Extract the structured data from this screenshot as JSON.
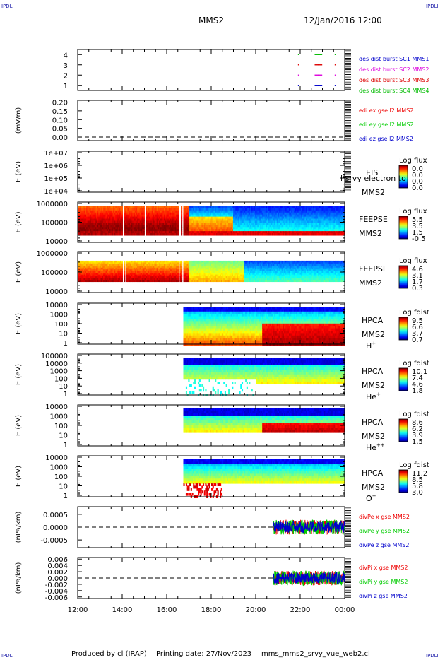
{
  "header": {
    "corner_tl": "IPDLI",
    "corner_tr": "IPDLI",
    "corner_bl": "IPDLI",
    "corner_br": "IPDLI",
    "title": "MMS2",
    "datetime": "12/Jan/2016 12:00"
  },
  "footer": {
    "produced": "Produced by cl (IRAP)",
    "printing": "Printing date: 27/Nov/2023",
    "file": "mms_mms2_srvy_vue_web2.cl"
  },
  "colors": {
    "mms1": "#0000cc",
    "mms2": "#dd00dd",
    "mms3": "#dd0000",
    "mms4": "#00bb00",
    "x_component": "#ee0000",
    "y_component": "#00cc00",
    "z_component": "#0000cc"
  },
  "chart_data": [
    {
      "id": "des-dist-burst",
      "type": "scatter",
      "yticks": [
        "1",
        "2",
        "3",
        "4"
      ],
      "xticks": [
        "12:00",
        "14:00",
        "16:00",
        "18:00",
        "20:00",
        "22:00",
        "00:00"
      ],
      "legend": [
        "des dist burst SC1 MMS1",
        "des dist burst SC2 MMS2",
        "des dist burst SC3 MMS3",
        "des dist burst SC4 MMS4"
      ],
      "series": [
        {
          "name": "des dist burst SC1 MMS1",
          "level": 1,
          "x": [
            21.9,
            22.65,
            22.8,
            23.55
          ]
        },
        {
          "name": "des dist burst SC2 MMS2",
          "level": 2,
          "x": [
            21.9,
            22.65,
            22.8,
            23.55
          ]
        },
        {
          "name": "des dist burst SC3 MMS3",
          "level": 3,
          "x": [
            21.9,
            22.65,
            22.8,
            23.55
          ]
        },
        {
          "name": "des dist burst SC4 MMS4",
          "level": 4,
          "x": [
            21.9,
            22.65,
            22.8,
            23.55
          ]
        }
      ],
      "ylim": [
        0.5,
        4.5
      ]
    },
    {
      "id": "edi-e",
      "type": "line",
      "ylabel": "(mV/m)",
      "yticks": [
        "0.20",
        "0.15",
        "0.10",
        "0.05",
        "0.00"
      ],
      "legend": [
        "edi ex gse l2 MMS2",
        "edi ey gse l2 MMS2",
        "edi ez gse l2 MMS2"
      ],
      "ylim": [
        -0.02,
        0.21
      ],
      "zero_line": true
    },
    {
      "id": "eis",
      "type": "heatmap",
      "ylabel": "E (eV)",
      "yticks": [
        "1e+07",
        "1e+06",
        "1e+05",
        "1e+04"
      ],
      "side_labels": [
        "EIS",
        "MMS2"
      ],
      "overlay_text": "l srvy electron to",
      "colorbar_title": "Log flux",
      "colorbar_ticks": [
        "0.0",
        "0.0",
        "0.0",
        "0.0"
      ]
    },
    {
      "id": "feeps-electron",
      "type": "heatmap",
      "ylabel": "E (eV)",
      "yticks": [
        "1000000",
        "100000",
        "10000"
      ],
      "side_labels": [
        "FEEPSE",
        "MMS2"
      ],
      "colorbar_title": "Log flux",
      "colorbar_ticks": [
        "5.5",
        "3.5",
        "1.5",
        "-0.5"
      ],
      "zrange": [
        -0.5,
        5.5
      ]
    },
    {
      "id": "feeps-ion",
      "type": "heatmap",
      "ylabel": "E (eV)",
      "yticks": [
        "1000000",
        "100000",
        "10000"
      ],
      "side_labels": [
        "FEEPSI",
        "MMS2"
      ],
      "colorbar_title": "Log flux",
      "colorbar_ticks": [
        "4.6",
        "3.1",
        "1.7",
        "0.3"
      ],
      "zrange": [
        0.3,
        4.6
      ]
    },
    {
      "id": "hpca-h",
      "type": "heatmap",
      "ylabel": "E (eV)",
      "yticks": [
        "10000",
        "1000",
        "100",
        "10",
        "1"
      ],
      "side_labels": [
        "HPCA",
        "MMS2"
      ],
      "species": "H",
      "species_charge": "+",
      "colorbar_title": "Log fdist",
      "colorbar_ticks": [
        "9.5",
        "6.6",
        "3.7",
        "0.7"
      ],
      "zrange": [
        0.7,
        9.5
      ]
    },
    {
      "id": "hpca-he",
      "type": "heatmap",
      "ylabel": "E (eV)",
      "yticks": [
        "100000",
        "10000",
        "1000",
        "100",
        "10",
        "1"
      ],
      "side_labels": [
        "HPCA",
        "MMS2"
      ],
      "species": "He",
      "species_charge": "+",
      "colorbar_title": "Log fdist",
      "colorbar_ticks": [
        "10.1",
        "7.4",
        "4.6",
        "1.8"
      ],
      "zrange": [
        1.8,
        10.1
      ]
    },
    {
      "id": "hpca-he2",
      "type": "heatmap",
      "ylabel": "E (eV)",
      "yticks": [
        "10000",
        "1000",
        "100",
        "10",
        "1"
      ],
      "side_labels": [
        "HPCA",
        "MMS2"
      ],
      "species": "He",
      "species_charge": "++",
      "colorbar_title": "Log fdist",
      "colorbar_ticks": [
        "8.6",
        "6.2",
        "3.9",
        "1.5"
      ],
      "zrange": [
        1.5,
        8.6
      ]
    },
    {
      "id": "hpca-o",
      "type": "heatmap",
      "ylabel": "E (eV)",
      "yticks": [
        "10000",
        "1000",
        "100",
        "10",
        "1"
      ],
      "side_labels": [
        "HPCA",
        "MMS2"
      ],
      "species": "O",
      "species_charge": "+",
      "colorbar_title": "Log fdist",
      "colorbar_ticks": [
        "11.2",
        "8.5",
        "5.8",
        "3.0"
      ],
      "zrange": [
        3.0,
        11.2
      ]
    },
    {
      "id": "div-pe",
      "type": "line",
      "ylabel": "(nPa/km)",
      "yticks": [
        "0.0005",
        "0.0000",
        "-0.0005"
      ],
      "legend": [
        "divPe x gse MMS2",
        "divPe y gse MMS2",
        "divPe z gse MMS2"
      ],
      "ylim": [
        -0.0008,
        0.0008
      ],
      "zero_line": true,
      "data_start_hour": 20.8
    },
    {
      "id": "div-pi",
      "type": "line",
      "ylabel": "(nPa/km)",
      "yticks": [
        "0.006",
        "0.004",
        "0.002",
        "0.000",
        "-0.002",
        "-0.004",
        "-0.006"
      ],
      "legend": [
        "divPi x gse MMS2",
        "divPi y gse MMS2",
        "divPi z gse MMS2"
      ],
      "ylim": [
        -0.0065,
        0.0065
      ],
      "zero_line": true,
      "data_start_hour": 20.8,
      "xticks": [
        "12:00",
        "14:00",
        "16:00",
        "18:00",
        "20:00",
        "22:00",
        "00:00"
      ],
      "xrange_hours": [
        12,
        24
      ]
    }
  ]
}
